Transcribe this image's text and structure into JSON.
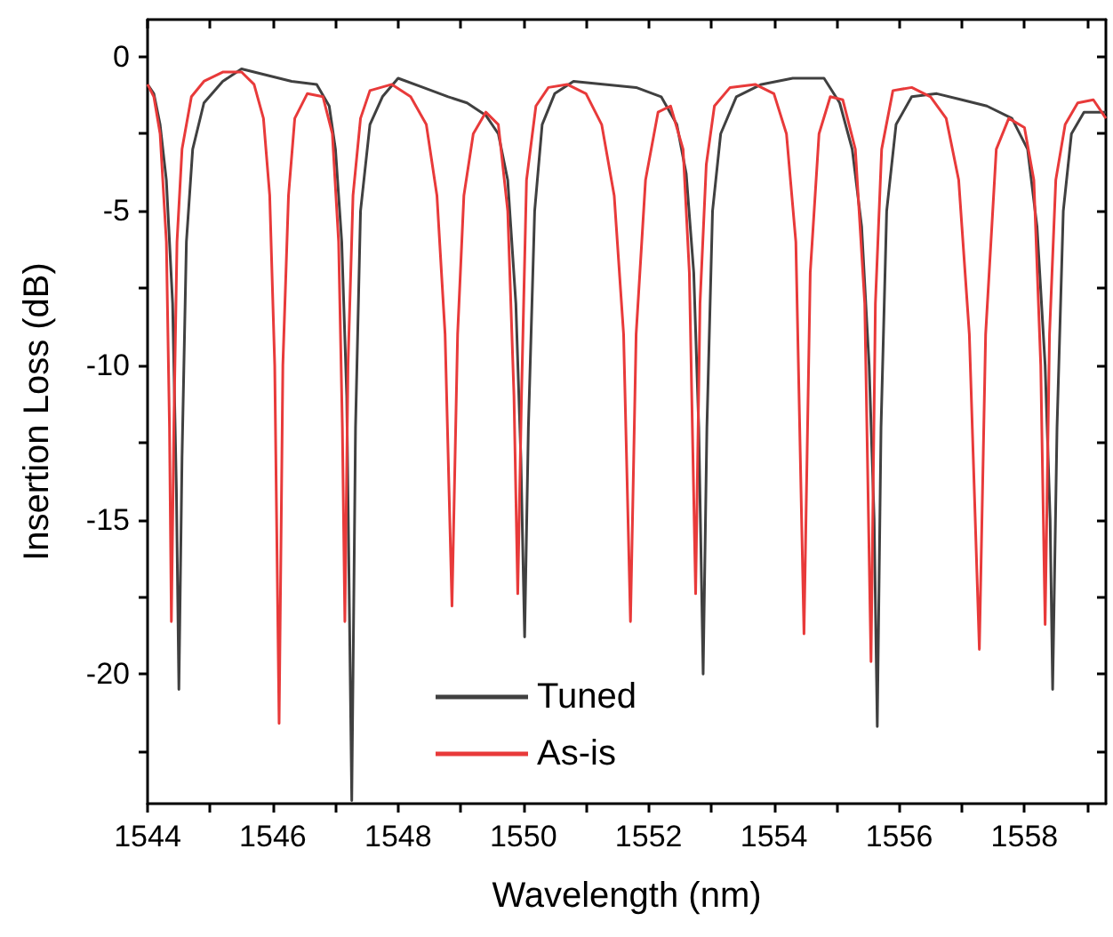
{
  "chart_data": {
    "type": "line",
    "xlabel": "Wavelength (nm)",
    "ylabel": "Insertion Loss (dB)",
    "xlim": [
      1544,
      1559.3
    ],
    "ylim": [
      -24.2,
      1.2
    ],
    "xticks": [
      1544,
      {
        "value": 1545,
        "label": null
      },
      1546,
      {
        "value": 1547,
        "label": null
      },
      1548,
      {
        "value": 1549,
        "label": null
      },
      1550,
      {
        "value": 1551,
        "label": null
      },
      1552,
      {
        "value": 1553,
        "label": null
      },
      1554,
      {
        "value": 1555,
        "label": null
      },
      1556,
      {
        "value": 1557,
        "label": null
      },
      1558,
      {
        "value": 1559,
        "label": null
      }
    ],
    "yticks": [
      {
        "value": -22.5,
        "label": null
      },
      -20,
      {
        "value": -17.5,
        "label": null
      },
      -15,
      {
        "value": -12.5,
        "label": null
      },
      -10,
      {
        "value": -7.5,
        "label": null
      },
      -5,
      {
        "value": -2.5,
        "label": null
      },
      0
    ],
    "grid": false,
    "legend": "bottom",
    "marker": "none",
    "line_style": "solid",
    "series": [
      {
        "name": "Tuned",
        "color": "#404040",
        "x": [
          1544.0,
          1544.1,
          1544.2,
          1544.3,
          1544.4,
          1544.46,
          1544.5,
          1544.55,
          1544.62,
          1544.72,
          1544.9,
          1545.2,
          1545.5,
          1545.9,
          1546.3,
          1546.7,
          1546.9,
          1547.0,
          1547.1,
          1547.18,
          1547.26,
          1547.32,
          1547.4,
          1547.55,
          1547.75,
          1548.0,
          1548.4,
          1548.8,
          1549.1,
          1549.4,
          1549.6,
          1549.75,
          1549.88,
          1549.96,
          1550.02,
          1550.08,
          1550.18,
          1550.3,
          1550.5,
          1550.8,
          1551.3,
          1551.8,
          1552.2,
          1552.45,
          1552.6,
          1552.72,
          1552.8,
          1552.87,
          1552.93,
          1553.02,
          1553.15,
          1553.4,
          1553.8,
          1554.3,
          1554.8,
          1555.05,
          1555.25,
          1555.4,
          1555.52,
          1555.6,
          1555.65,
          1555.71,
          1555.8,
          1555.95,
          1556.2,
          1556.6,
          1557.0,
          1557.4,
          1557.8,
          1558.05,
          1558.2,
          1558.33,
          1558.41,
          1558.45,
          1558.52,
          1558.62,
          1558.75,
          1558.95,
          1559.3
        ],
        "values": [
          -0.9,
          -1.2,
          -2.2,
          -4,
          -8,
          -14,
          -20.5,
          -13,
          -6,
          -3,
          -1.5,
          -0.8,
          -0.4,
          -0.6,
          -0.8,
          -0.9,
          -1.6,
          -3,
          -6,
          -11,
          -24.1,
          -12,
          -5,
          -2.2,
          -1.3,
          -0.7,
          -1.0,
          -1.3,
          -1.5,
          -1.9,
          -2.5,
          -4,
          -8,
          -13,
          -18.8,
          -12,
          -5,
          -2.2,
          -1.2,
          -0.8,
          -0.9,
          -1.0,
          -1.3,
          -2.2,
          -3.8,
          -7,
          -12,
          -20.0,
          -12,
          -5,
          -2.5,
          -1.3,
          -0.9,
          -0.7,
          -0.7,
          -1.5,
          -3,
          -5.5,
          -10,
          -15,
          -21.7,
          -12,
          -5,
          -2.2,
          -1.3,
          -1.2,
          -1.4,
          -1.6,
          -2.0,
          -3,
          -5.5,
          -10,
          -15,
          -20.5,
          -12,
          -5,
          -2.5,
          -1.8,
          -1.8
        ]
      },
      {
        "name": "As-is",
        "color": "#e83a3a",
        "x": [
          1544.0,
          1544.1,
          1544.2,
          1544.3,
          1544.35,
          1544.38,
          1544.42,
          1544.47,
          1544.55,
          1544.7,
          1544.9,
          1545.2,
          1545.5,
          1545.7,
          1545.85,
          1545.95,
          1546.03,
          1546.1,
          1546.16,
          1546.25,
          1546.35,
          1546.55,
          1546.8,
          1546.95,
          1547.05,
          1547.11,
          1547.15,
          1547.2,
          1547.28,
          1547.4,
          1547.55,
          1547.9,
          1548.2,
          1548.45,
          1548.62,
          1548.75,
          1548.86,
          1548.95,
          1549.05,
          1549.2,
          1549.4,
          1549.6,
          1549.75,
          1549.85,
          1549.91,
          1549.97,
          1550.05,
          1550.2,
          1550.4,
          1550.7,
          1551.0,
          1551.25,
          1551.45,
          1551.6,
          1551.71,
          1551.8,
          1551.95,
          1552.15,
          1552.35,
          1552.55,
          1552.65,
          1552.75,
          1552.82,
          1552.92,
          1553.05,
          1553.3,
          1553.7,
          1554.0,
          1554.2,
          1554.35,
          1554.48,
          1554.58,
          1554.72,
          1554.9,
          1555.1,
          1555.3,
          1555.45,
          1555.55,
          1555.62,
          1555.72,
          1555.9,
          1556.2,
          1556.5,
          1556.75,
          1556.95,
          1557.12,
          1557.28,
          1557.38,
          1557.55,
          1557.75,
          1558.0,
          1558.15,
          1558.26,
          1558.33,
          1558.4,
          1558.5,
          1558.65,
          1558.85,
          1559.1,
          1559.3
        ],
        "values": [
          -0.9,
          -1.3,
          -2.5,
          -6,
          -12,
          -18.3,
          -12,
          -6,
          -3,
          -1.3,
          -0.8,
          -0.5,
          -0.5,
          -0.9,
          -2,
          -4.5,
          -10,
          -21.6,
          -10,
          -4.5,
          -2,
          -1.2,
          -1.3,
          -2.5,
          -6,
          -12,
          -18.3,
          -10,
          -4.5,
          -2,
          -1.1,
          -0.9,
          -1.3,
          -2.2,
          -4.5,
          -9,
          -17.8,
          -9,
          -4.5,
          -2.5,
          -1.8,
          -2.2,
          -5,
          -11,
          -17.4,
          -11,
          -4,
          -1.6,
          -1,
          -0.9,
          -1.2,
          -2.2,
          -4.5,
          -9,
          -18.3,
          -9,
          -4,
          -1.8,
          -1.6,
          -3,
          -7,
          -17.4,
          -8,
          -3.5,
          -1.6,
          -1.0,
          -0.9,
          -1.2,
          -2.5,
          -6,
          -18.7,
          -7,
          -2.5,
          -1.3,
          -1.4,
          -3,
          -8,
          -19.6,
          -8,
          -3,
          -1.1,
          -1.0,
          -1.3,
          -2,
          -4,
          -9,
          -19.2,
          -9,
          -3,
          -2.0,
          -2.3,
          -4,
          -10,
          -18.4,
          -9,
          -4,
          -2.2,
          -1.5,
          -1.4,
          -2.0
        ]
      }
    ]
  }
}
